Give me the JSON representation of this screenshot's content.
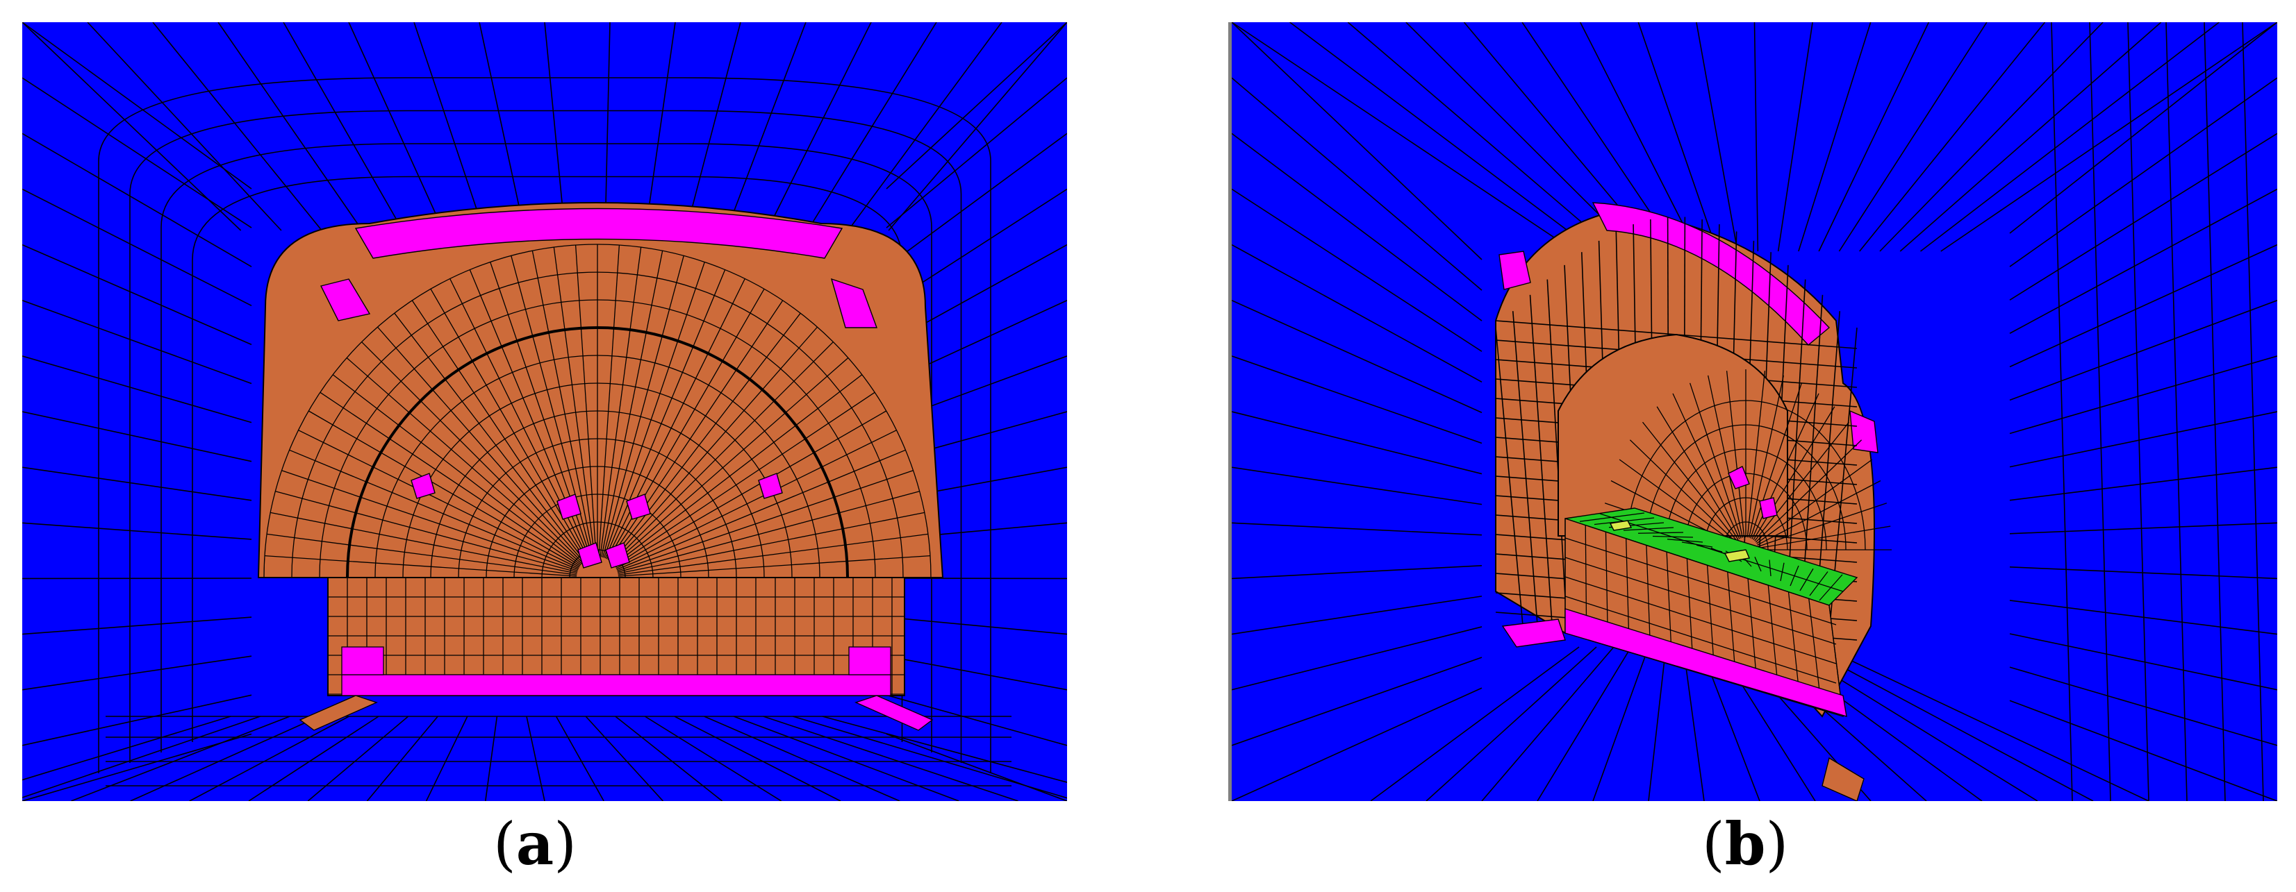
{
  "panels": [
    {
      "letter": "a",
      "open": "(",
      "close": ")"
    },
    {
      "letter": "b",
      "open": "(",
      "close": ")"
    }
  ],
  "colors": {
    "rock": "#0000ff",
    "lining": "#cd6b3a",
    "pink": "#ff00ff",
    "green": "#22cc22",
    "yellow": "#d8e84a",
    "mesh_line": "#000000"
  }
}
